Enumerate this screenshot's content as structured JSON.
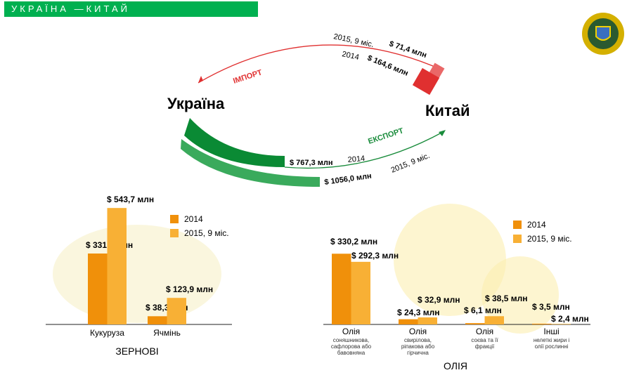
{
  "header": {
    "title": "УКРАЇНА —КИТАЙ"
  },
  "trade": {
    "country_left": "Україна",
    "country_right": "Китай",
    "import": {
      "label": "ІМПОРТ",
      "color": "#e03030",
      "values": [
        {
          "period": "2015, 9 міс.",
          "value": "$ 71,4 млн"
        },
        {
          "period": "2014",
          "value": "$ 164,6 млн"
        }
      ]
    },
    "export": {
      "label": "ЕКСПОРТ",
      "color": "#1a8c3c",
      "values": [
        {
          "period": "2014",
          "value": "$ 767,3 млн"
        },
        {
          "period": "2015, 9 міс.",
          "value": "$ 1056,0 млн"
        }
      ]
    }
  },
  "chart_data": [
    {
      "type": "bar",
      "title": "ЗЕРНОВІ",
      "categories": [
        "Кукуруза",
        "Ячмінь"
      ],
      "series": [
        {
          "name": "2014",
          "values": [
            331.1,
            38.3
          ],
          "labels": [
            "$ 331,1 млн",
            "$ 38,3 млн"
          ],
          "color": "#f0900a"
        },
        {
          "name": "2015, 9 міс.",
          "values": [
            543.7,
            123.9
          ],
          "labels": [
            "$ 543,7 млн",
            "$ 123,9 млн"
          ],
          "color": "#f8b035"
        }
      ],
      "legend": "top-right"
    },
    {
      "type": "bar",
      "title": "ОЛІЯ",
      "categories": [
        "Олія",
        "Олія",
        "Олія",
        "Інші"
      ],
      "subcategories": [
        "соняшникова, сафлорова або бавовняна",
        "свирілова, ріпакова або гірчична",
        "соєва та її фракції",
        "нелеткі жири і олії рослинні"
      ],
      "series": [
        {
          "name": "2014",
          "values": [
            330.2,
            24.3,
            6.1,
            3.5
          ],
          "labels": [
            "$ 330,2 млн",
            "$ 24,3 млн",
            "$ 6,1 млн",
            "$ 3,5 млн"
          ],
          "color": "#f0900a"
        },
        {
          "name": "2015, 9 міс.",
          "values": [
            292.3,
            32.9,
            38.5,
            2.4
          ],
          "labels": [
            "$ 292,3 млн",
            "$ 32,9 млн",
            "$ 38,5 млн",
            "$ 2,4 млн"
          ],
          "color": "#f8b035"
        }
      ],
      "legend": "top-right"
    }
  ]
}
